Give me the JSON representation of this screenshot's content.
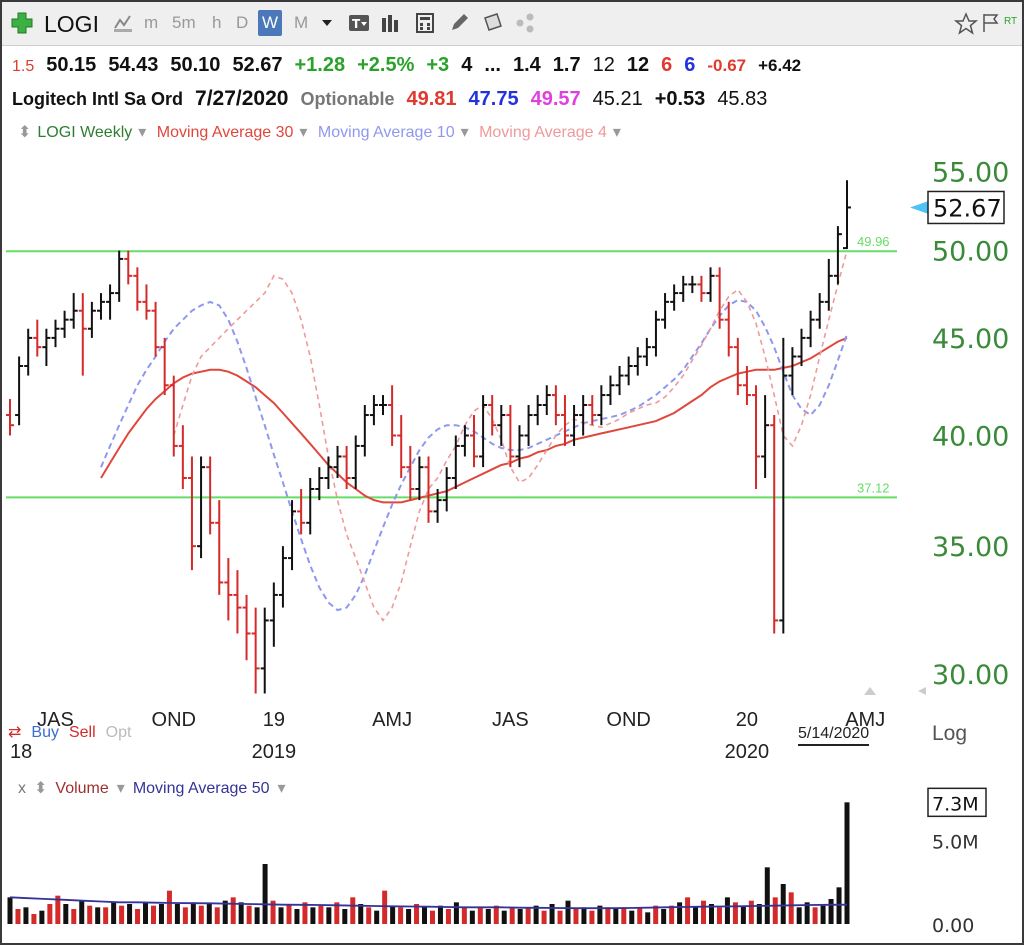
{
  "toolbar": {
    "symbol": "LOGI",
    "timeframes": [
      "m",
      "5m",
      "h",
      "D",
      "W",
      "M"
    ],
    "active_timeframe": "W",
    "icons": [
      "plus-icon",
      "chart-style-icon",
      "bars-icon",
      "calculator-icon",
      "pencil-icon",
      "notes-icon",
      "share-icon",
      "star-icon",
      "flag-icon"
    ],
    "rt_label": "RT"
  },
  "quote": {
    "row1": {
      "prefix": "1.5",
      "open": "50.15",
      "high": "54.43",
      "low": "50.10",
      "close": "52.67",
      "change": "+1.28",
      "change_pct": "+2.5%",
      "v1": "+3",
      "v2": "4",
      "v3": "...",
      "v4": "1.4",
      "v5": "1.7",
      "v6": "12",
      "v7": "12",
      "v8": "6",
      "v9": "6",
      "v10": "-0.67",
      "v11": "+6.42"
    },
    "row2": {
      "name": "Logitech Intl Sa Ord",
      "date": "7/27/2020",
      "optionable": "Optionable",
      "p1": "49.81",
      "p2": "47.75",
      "p3": "49.57",
      "p4": "45.21",
      "p5": "+0.53",
      "p6": "45.83"
    }
  },
  "legend": {
    "weekly": "LOGI Weekly",
    "ma30": "Moving Average 30",
    "ma10": "Moving Average 10",
    "ma4": "Moving Average 4"
  },
  "colors": {
    "up_bar": "#111111",
    "down_bar": "#d42a2a",
    "ma30": "#e0473c",
    "ma10": "#8f98ee",
    "ma4": "#ee9a9a",
    "hline": "#66dd66",
    "axis_text": "#3a8a3a",
    "vol_ma": "#333399"
  },
  "chart_data": {
    "type": "ohlc",
    "scale": "log",
    "ylim": [
      29.0,
      57.0
    ],
    "yticks": [
      "55.00",
      "50.00",
      "45.00",
      "40.00",
      "35.00",
      "30.00"
    ],
    "ytick_values": [
      55,
      50,
      45,
      40,
      35,
      30
    ],
    "last_price_label": "52.67",
    "last_price": 52.67,
    "hlines": [
      {
        "value": 49.96,
        "label": "49.96"
      },
      {
        "value": 37.12,
        "label": "37.12"
      }
    ],
    "x_ticks": [
      {
        "label": "JAS",
        "week": 5
      },
      {
        "label": "OND",
        "week": 18
      },
      {
        "label": "19",
        "week": 29
      },
      {
        "label": "AMJ",
        "week": 42
      },
      {
        "label": "JAS",
        "week": 55
      },
      {
        "label": "OND",
        "week": 68
      },
      {
        "label": "20",
        "week": 81
      },
      {
        "label": "AMJ",
        "week": 94
      }
    ],
    "year_labels": [
      {
        "label": "18",
        "week": 0
      },
      {
        "label": "2019",
        "week": 29
      },
      {
        "label": "2020",
        "week": 81
      }
    ],
    "date_badge": "5/14/2020",
    "log_label": "Log",
    "bars": [
      [
        41.0,
        41.8,
        40.0,
        40.5
      ],
      [
        41.0,
        44.0,
        40.5,
        43.5
      ],
      [
        43.5,
        45.5,
        43.0,
        45.0
      ],
      [
        45.0,
        46.0,
        44.0,
        44.5
      ],
      [
        44.5,
        45.5,
        43.5,
        45.0
      ],
      [
        45.0,
        46.0,
        44.5,
        45.5
      ],
      [
        45.5,
        46.5,
        45.0,
        46.0
      ],
      [
        46.0,
        47.5,
        45.5,
        46.5
      ],
      [
        46.5,
        47.5,
        43.0,
        45.5
      ],
      [
        45.5,
        47.0,
        45.0,
        46.5
      ],
      [
        46.5,
        47.5,
        46.0,
        47.0
      ],
      [
        47.0,
        48.0,
        46.0,
        47.5
      ],
      [
        47.5,
        50.0,
        47.0,
        49.5
      ],
      [
        49.5,
        50.0,
        48.0,
        48.5
      ],
      [
        48.5,
        49.0,
        46.5,
        47.0
      ],
      [
        47.0,
        48.0,
        46.0,
        46.5
      ],
      [
        46.5,
        47.0,
        44.0,
        44.5
      ],
      [
        44.5,
        45.0,
        42.0,
        42.5
      ],
      [
        42.5,
        43.0,
        39.0,
        39.5
      ],
      [
        39.5,
        40.5,
        37.5,
        38.0
      ],
      [
        38.0,
        39.0,
        34.0,
        35.0
      ],
      [
        35.0,
        39.0,
        34.5,
        38.5
      ],
      [
        38.5,
        39.0,
        35.5,
        36.0
      ],
      [
        36.0,
        37.0,
        33.0,
        33.5
      ],
      [
        33.5,
        34.5,
        32.0,
        33.0
      ],
      [
        33.0,
        34.0,
        31.5,
        32.5
      ],
      [
        32.5,
        33.0,
        30.5,
        31.5
      ],
      [
        31.5,
        32.5,
        29.3,
        30.2
      ],
      [
        30.2,
        32.5,
        29.3,
        32.0
      ],
      [
        32.0,
        33.5,
        31.0,
        33.0
      ],
      [
        33.0,
        35.0,
        32.5,
        34.5
      ],
      [
        34.5,
        37.0,
        34.0,
        36.5
      ],
      [
        36.5,
        37.5,
        35.5,
        36.0
      ],
      [
        36.0,
        38.0,
        35.5,
        37.5
      ],
      [
        37.5,
        38.5,
        37.0,
        38.0
      ],
      [
        38.0,
        39.0,
        37.5,
        38.5
      ],
      [
        38.5,
        39.5,
        38.0,
        39.0
      ],
      [
        39.0,
        39.5,
        37.5,
        38.0
      ],
      [
        38.0,
        40.0,
        37.5,
        39.5
      ],
      [
        39.5,
        41.5,
        39.0,
        41.0
      ],
      [
        41.0,
        42.0,
        40.5,
        41.5
      ],
      [
        41.5,
        42.0,
        41.0,
        41.5
      ],
      [
        41.5,
        42.5,
        39.5,
        40.0
      ],
      [
        40.0,
        41.0,
        38.0,
        38.5
      ],
      [
        38.5,
        39.5,
        37.0,
        37.5
      ],
      [
        37.5,
        39.0,
        37.0,
        38.5
      ],
      [
        38.5,
        39.0,
        36.0,
        36.5
      ],
      [
        36.5,
        37.5,
        36.0,
        37.0
      ],
      [
        37.0,
        38.5,
        36.5,
        38.0
      ],
      [
        38.0,
        40.0,
        37.5,
        39.5
      ],
      [
        39.5,
        40.5,
        39.0,
        40.0
      ],
      [
        40.0,
        41.0,
        38.5,
        39.0
      ],
      [
        39.0,
        42.0,
        38.5,
        41.5
      ],
      [
        41.5,
        42.0,
        40.0,
        40.5
      ],
      [
        40.5,
        41.5,
        39.5,
        41.0
      ],
      [
        41.0,
        41.5,
        38.5,
        39.0
      ],
      [
        39.0,
        40.5,
        38.5,
        40.0
      ],
      [
        40.0,
        41.5,
        39.5,
        41.0
      ],
      [
        41.0,
        42.0,
        40.5,
        41.5
      ],
      [
        41.5,
        42.5,
        41.0,
        42.0
      ],
      [
        42.0,
        42.5,
        40.5,
        41.0
      ],
      [
        41.0,
        42.0,
        39.5,
        40.0
      ],
      [
        40.0,
        41.5,
        39.5,
        41.0
      ],
      [
        41.0,
        42.0,
        40.0,
        41.5
      ],
      [
        41.5,
        42.0,
        40.5,
        41.0
      ],
      [
        41.0,
        42.5,
        40.5,
        42.0
      ],
      [
        42.0,
        43.0,
        41.5,
        42.5
      ],
      [
        42.5,
        43.5,
        42.0,
        43.0
      ],
      [
        43.0,
        44.0,
        42.5,
        43.5
      ],
      [
        43.5,
        44.5,
        43.0,
        44.0
      ],
      [
        44.0,
        45.0,
        43.5,
        44.5
      ],
      [
        44.5,
        46.5,
        44.0,
        46.0
      ],
      [
        46.0,
        47.5,
        45.5,
        47.0
      ],
      [
        47.0,
        48.0,
        46.5,
        47.5
      ],
      [
        47.5,
        48.5,
        47.0,
        48.0
      ],
      [
        48.0,
        48.5,
        47.5,
        48.0
      ],
      [
        48.0,
        48.5,
        47.0,
        47.5
      ],
      [
        47.5,
        49.0,
        47.0,
        48.5
      ],
      [
        48.5,
        49.0,
        45.5,
        46.0
      ],
      [
        46.0,
        47.0,
        44.0,
        44.5
      ],
      [
        44.5,
        45.0,
        42.0,
        42.5
      ],
      [
        42.5,
        43.5,
        41.5,
        42.0
      ],
      [
        42.0,
        42.5,
        37.5,
        39.0
      ],
      [
        39.0,
        42.0,
        38.0,
        40.5
      ],
      [
        40.5,
        41.0,
        31.5,
        32.0
      ],
      [
        32.0,
        45.0,
        31.5,
        43.0
      ],
      [
        43.0,
        44.5,
        42.0,
        44.0
      ],
      [
        44.0,
        45.5,
        43.5,
        45.0
      ],
      [
        45.0,
        46.5,
        44.5,
        46.0
      ],
      [
        46.0,
        47.5,
        45.5,
        47.0
      ],
      [
        47.0,
        49.5,
        46.5,
        48.5
      ],
      [
        48.5,
        51.5,
        48.0,
        51.0
      ],
      [
        50.15,
        54.43,
        50.1,
        52.67
      ]
    ],
    "ma30": [
      38.0,
      38.7,
      39.4,
      40.1,
      40.7,
      41.3,
      41.8,
      42.2,
      42.6,
      42.9,
      43.1,
      43.2,
      43.3,
      43.3,
      43.2,
      43.0,
      42.7,
      42.4,
      42.0,
      41.6,
      41.1,
      40.6,
      40.1,
      39.6,
      39.1,
      38.6,
      38.2,
      37.8,
      37.5,
      37.2,
      37.0,
      36.9,
      36.9,
      36.9,
      37.0,
      37.1,
      37.2,
      37.3,
      37.4,
      37.6,
      37.8,
      38.0,
      38.2,
      38.4,
      38.6,
      38.7,
      38.9,
      39.0,
      39.2,
      39.3,
      39.5,
      39.6,
      39.8,
      39.9,
      40.0,
      40.1,
      40.2,
      40.3,
      40.4,
      40.5,
      40.6,
      40.7,
      40.9,
      41.1,
      41.4,
      41.7,
      42.0,
      42.4,
      42.7,
      42.9,
      43.1,
      43.2,
      43.3,
      43.3,
      43.3,
      43.4,
      43.5,
      43.7,
      43.9,
      44.2,
      44.5,
      44.8,
      45.0
    ],
    "ma10": [
      38.5,
      39.5,
      40.5,
      41.5,
      42.5,
      43.3,
      44.0,
      44.8,
      45.5,
      46.0,
      46.5,
      46.8,
      47.0,
      46.8,
      46.0,
      44.8,
      43.4,
      41.9,
      40.5,
      39.1,
      37.8,
      36.5,
      35.3,
      34.2,
      33.3,
      32.7,
      32.4,
      32.5,
      33.0,
      33.8,
      34.8,
      35.8,
      36.8,
      37.7,
      38.5,
      39.3,
      39.9,
      40.3,
      40.5,
      40.5,
      40.4,
      40.2,
      39.9,
      39.6,
      39.4,
      39.3,
      39.3,
      39.4,
      39.6,
      39.8,
      40.0,
      40.2,
      40.4,
      40.6,
      40.7,
      40.8,
      40.9,
      41.0,
      41.2,
      41.4,
      41.7,
      42.0,
      42.4,
      42.8,
      43.3,
      44.0,
      44.7,
      45.5,
      46.2,
      46.8,
      47.1,
      47.0,
      46.5,
      45.6,
      44.5,
      43.2,
      42.0,
      41.3,
      41.0,
      41.5,
      42.5,
      43.8,
      45.2
    ],
    "ma4": [
      40.0,
      41.5,
      43.0,
      44.0,
      44.5,
      45.0,
      45.5,
      46.0,
      46.5,
      47.0,
      47.5,
      48.5,
      48.3,
      47.5,
      46.0,
      44.0,
      41.5,
      39.0,
      37.0,
      35.5,
      34.5,
      33.5,
      32.5,
      32.0,
      32.5,
      33.5,
      35.0,
      36.5,
      37.5,
      38.0,
      38.8,
      39.5,
      40.5,
      41.2,
      41.5,
      40.8,
      39.8,
      38.5,
      37.8,
      38.0,
      38.6,
      39.3,
      40.0,
      40.5,
      40.8,
      40.6,
      40.5,
      40.4,
      40.6,
      40.8,
      41.1,
      41.3,
      41.5,
      41.6,
      41.9,
      42.4,
      43.0,
      43.8,
      44.6,
      45.5,
      46.5,
      47.3,
      47.7,
      47.0,
      45.8,
      44.0,
      42.0,
      40.0,
      39.5,
      40.5,
      42.0,
      44.0,
      46.0,
      48.0,
      50.0
    ],
    "volume": {
      "label": "Volume",
      "ma_label": "Moving Average 50",
      "yticks": [
        "7.3M",
        "5.0M",
        "0.00"
      ],
      "ytick_values": [
        7.3,
        5.0,
        0.0
      ],
      "ylim": [
        0,
        7.8
      ],
      "values": [
        1.6,
        0.9,
        1.0,
        0.6,
        0.8,
        1.2,
        1.7,
        1.2,
        0.9,
        1.4,
        1.1,
        1.0,
        1.0,
        1.3,
        1.1,
        1.2,
        0.9,
        1.3,
        1.1,
        1.2,
        2.0,
        1.2,
        1.0,
        1.3,
        1.1,
        1.2,
        1.0,
        1.4,
        1.6,
        1.3,
        1.1,
        1.0,
        3.6,
        1.4,
        1.0,
        1.2,
        0.9,
        1.3,
        1.0,
        1.1,
        1.0,
        1.3,
        0.9,
        1.6,
        1.2,
        1.0,
        0.8,
        2.0,
        1.1,
        1.0,
        0.9,
        1.2,
        1.0,
        0.8,
        1.1,
        0.9,
        1.3,
        1.0,
        0.8,
        1.0,
        0.9,
        1.1,
        0.8,
        1.0,
        0.9,
        1.0,
        1.1,
        0.8,
        1.2,
        0.8,
        1.4,
        0.9,
        1.0,
        0.8,
        1.1,
        1.0,
        0.9,
        1.0,
        0.8,
        1.0,
        0.7,
        1.1,
        0.9,
        1.1,
        1.3,
        1.6,
        1.0,
        1.4,
        1.2,
        1.0,
        1.6,
        1.3,
        1.1,
        1.4,
        1.2,
        3.4,
        1.6,
        2.4,
        1.9,
        1.0,
        1.3,
        1.0,
        1.1,
        1.5,
        2.2,
        7.3
      ],
      "up": [
        1,
        0,
        1,
        0,
        1,
        0,
        0,
        1,
        0,
        1,
        0,
        1,
        0,
        1,
        0,
        1,
        0,
        1,
        0,
        1,
        0,
        1,
        0,
        1,
        0,
        1,
        0,
        1,
        0,
        1,
        0,
        1,
        1,
        0,
        1,
        0,
        1,
        0,
        1,
        0,
        1,
        0,
        1,
        0,
        1,
        0,
        1,
        0,
        1,
        0,
        1,
        0,
        1,
        0,
        1,
        0,
        1,
        0,
        1,
        0,
        1,
        0,
        1,
        0,
        1,
        0,
        1,
        0,
        1,
        0,
        1,
        0,
        1,
        0,
        1,
        0,
        1,
        0,
        1,
        0,
        1,
        0,
        1,
        0,
        1,
        0,
        1,
        0,
        1,
        0,
        1,
        0,
        1,
        0,
        1,
        1,
        0,
        1,
        0,
        1,
        1,
        0,
        1,
        1,
        1,
        1
      ],
      "ma": [
        1.6,
        1.55,
        1.5,
        1.45,
        1.4,
        1.35,
        1.3,
        1.3,
        1.28,
        1.26,
        1.25,
        1.24,
        1.22,
        1.2,
        1.18,
        1.16,
        1.15,
        1.14,
        1.12,
        1.1,
        1.08,
        1.06,
        1.05,
        1.04,
        1.02,
        1.0,
        1.0,
        1.0,
        0.98,
        0.97,
        0.96,
        0.95,
        0.95,
        0.95,
        0.96,
        0.98,
        1.0,
        1.02,
        1.04,
        1.05,
        1.06,
        1.08,
        1.1,
        1.12,
        1.14,
        1.15,
        1.16
      ]
    }
  },
  "bottom": {
    "buy": "Buy",
    "sell": "Sell",
    "opt": "Opt",
    "x_label": "x"
  }
}
